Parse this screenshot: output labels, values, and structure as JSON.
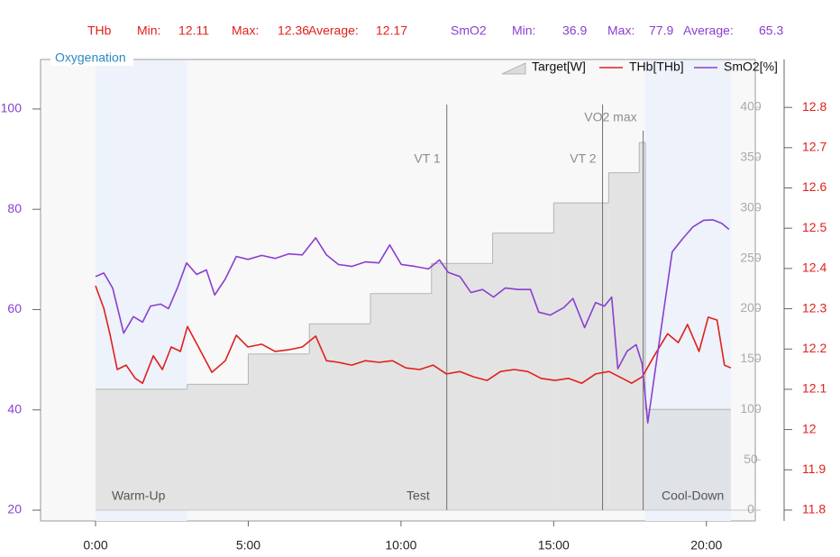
{
  "chart_data": {
    "type": "line",
    "title": "Oxygenation",
    "stats": [
      {
        "name": "THb",
        "color": "#e0201c",
        "items": [
          {
            "label": "Min:",
            "value": 12.11
          },
          {
            "label": "Max:",
            "value": 12.36
          },
          {
            "label": "Average:",
            "value": 12.17
          }
        ]
      },
      {
        "name": "SmO2",
        "color": "#8a3fcf",
        "items": [
          {
            "label": "Min:",
            "value": 36.9
          },
          {
            "label": "Max:",
            "value": 77.9
          },
          {
            "label": "Average:",
            "value": 65.3
          }
        ]
      }
    ],
    "xlim": [
      -1.8,
      21.6
    ],
    "xticks": [
      {
        "value": 0,
        "label": "0:00"
      },
      {
        "value": 5,
        "label": "5:00"
      },
      {
        "value": 10,
        "label": "10:00"
      },
      {
        "value": 15,
        "label": "15:00"
      },
      {
        "value": 20,
        "label": "20:00"
      }
    ],
    "ylim": [
      17.85,
      109.87
    ],
    "yticks": [
      20,
      40,
      60,
      80,
      100
    ],
    "y2lim": [
      11.773,
      12.919
    ],
    "y2ticks": [
      11.8,
      11.9,
      12,
      12.1,
      12.2,
      12.3,
      12.4,
      12.5,
      12.6,
      12.7,
      12.8
    ],
    "y3lim": [
      -10.7,
      447.4
    ],
    "y3ticks": [
      0,
      50,
      100,
      150,
      200,
      250,
      300,
      350,
      400
    ],
    "zones": [
      {
        "label": "Warm-Up",
        "start": 0,
        "end": 3,
        "shaded": true
      },
      {
        "label": "Test",
        "start": 3,
        "end": 18,
        "shaded": false
      },
      {
        "label": "Cool-Down",
        "start": 18,
        "end": 20.8,
        "shaded": true
      }
    ],
    "markers": [
      {
        "label": "VT 1",
        "x": 11.5
      },
      {
        "label": "VT 2",
        "x": 16.6
      },
      {
        "label": "VO2 max",
        "x": 17.93
      }
    ],
    "series": [
      {
        "name": "Target[W]",
        "type": "step",
        "axis": "y3",
        "color": "#b4b4b4",
        "end": 20.8,
        "x": [
          0,
          3,
          5,
          7,
          9,
          11,
          13,
          15,
          16.8,
          17.8,
          18
        ],
        "values": [
          120,
          125,
          155,
          185,
          215,
          245,
          275,
          305,
          335,
          365,
          100
        ]
      },
      {
        "name": "THb[THb]",
        "axis": "y2",
        "color": "#e0201c",
        "x": [
          0,
          0.27,
          0.47,
          0.71,
          1.0,
          1.3,
          1.54,
          1.89,
          2.19,
          2.48,
          2.78,
          3.01,
          3.37,
          3.81,
          4.25,
          4.61,
          4.99,
          5.44,
          5.88,
          6.32,
          6.77,
          7.21,
          7.56,
          7.95,
          8.39,
          8.83,
          9.28,
          9.72,
          10.16,
          10.61,
          11.05,
          11.49,
          11.93,
          12.38,
          12.82,
          13.26,
          13.71,
          14.15,
          14.59,
          15.04,
          15.48,
          15.92,
          16.37,
          16.81,
          17.25,
          17.55,
          17.9,
          18.29,
          18.73,
          19.08,
          19.38,
          19.76,
          20.06,
          20.35,
          20.59,
          20.8
        ],
        "values": [
          12.357,
          12.301,
          12.238,
          12.149,
          12.16,
          12.127,
          12.115,
          12.183,
          12.149,
          12.205,
          12.194,
          12.256,
          12.205,
          12.142,
          12.171,
          12.234,
          12.205,
          12.212,
          12.194,
          12.198,
          12.205,
          12.232,
          12.171,
          12.167,
          12.16,
          12.171,
          12.167,
          12.171,
          12.153,
          12.149,
          12.16,
          12.138,
          12.144,
          12.131,
          12.122,
          12.144,
          12.149,
          12.144,
          12.127,
          12.122,
          12.127,
          12.115,
          12.138,
          12.144,
          12.127,
          12.115,
          12.131,
          12.183,
          12.238,
          12.216,
          12.261,
          12.194,
          12.279,
          12.272,
          12.16,
          12.153
        ]
      },
      {
        "name": "SmO2[%]",
        "axis": "y",
        "color": "#8a3fcf",
        "x": [
          0,
          0.27,
          0.56,
          0.92,
          1.24,
          1.54,
          1.8,
          2.13,
          2.39,
          2.68,
          2.98,
          3.31,
          3.63,
          3.9,
          4.25,
          4.61,
          4.99,
          5.44,
          5.88,
          6.32,
          6.77,
          7.21,
          7.56,
          7.95,
          8.39,
          8.83,
          9.28,
          9.63,
          10.01,
          10.46,
          10.9,
          11.26,
          11.55,
          11.93,
          12.29,
          12.67,
          13.03,
          13.41,
          13.84,
          14.24,
          14.51,
          14.89,
          15.33,
          15.63,
          16.01,
          16.37,
          16.66,
          16.9,
          17.1,
          17.4,
          17.7,
          17.9,
          18.08,
          18.29,
          18.58,
          18.88,
          19.23,
          19.56,
          19.91,
          20.21,
          20.5,
          20.74
        ],
        "values": [
          66.6,
          67.3,
          64.3,
          55.3,
          58.6,
          57.5,
          60.7,
          61.1,
          60.2,
          64.3,
          69.3,
          67.0,
          67.9,
          62.9,
          66.1,
          70.6,
          70.0,
          70.8,
          70.2,
          71.1,
          70.9,
          74.3,
          70.9,
          69.0,
          68.6,
          69.5,
          69.3,
          72.9,
          69.0,
          68.6,
          68.1,
          69.9,
          67.4,
          66.6,
          63.4,
          64.0,
          62.5,
          64.3,
          64.0,
          64.0,
          59.5,
          58.9,
          60.4,
          62.2,
          56.4,
          61.4,
          60.7,
          62.5,
          48.2,
          51.7,
          53.0,
          49.1,
          37.4,
          46.4,
          58.9,
          71.5,
          74.2,
          76.5,
          77.8,
          77.9,
          77.2,
          76.0
        ]
      }
    ]
  }
}
